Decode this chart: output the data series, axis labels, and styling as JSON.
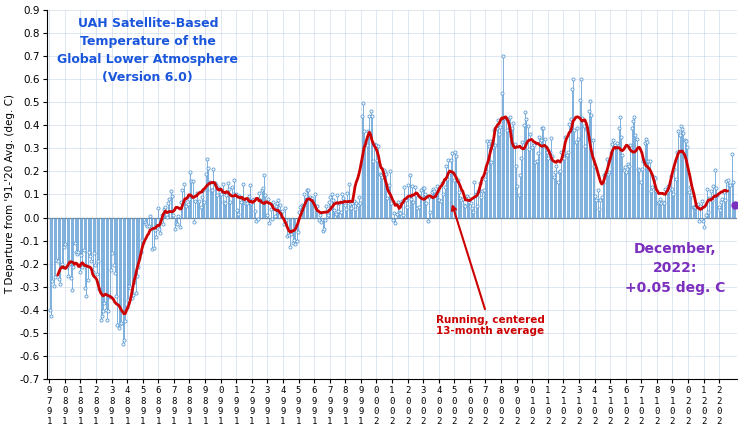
{
  "title": "UAH Satellite-Based\nTemperature of the\nGlobal Lower Atmosphere\n(Version 6.0)",
  "ylabel": "T Departure from '91-'20 Avg. (deg. C)",
  "annotation_text": "Running, centered\n13-month average",
  "dec2022_label": "December,\n2022:\n+0.05 deg. C",
  "title_color": "#1a56db",
  "annotation_color": "#cc0000",
  "dec2022_color": "#7b2fbe",
  "monthly_color": "#5b9bd5",
  "running_avg_color": "#cc0000",
  "zero_line_color": "#808080",
  "ylim": [
    -0.7,
    0.9
  ],
  "yticks": [
    -0.7,
    -0.6,
    -0.5,
    -0.4,
    -0.3,
    -0.2,
    -0.1,
    0.0,
    0.1,
    0.2,
    0.3,
    0.4,
    0.5,
    0.6,
    0.7,
    0.8,
    0.9
  ],
  "monthly_data": [
    -0.401,
    -0.424,
    -0.274,
    -0.296,
    -0.258,
    -0.182,
    -0.19,
    -0.267,
    -0.289,
    -0.201,
    -0.216,
    -0.127,
    -0.114,
    -0.215,
    -0.254,
    -0.199,
    -0.261,
    -0.315,
    -0.213,
    -0.111,
    -0.15,
    -0.159,
    -0.148,
    -0.234,
    -0.161,
    -0.212,
    -0.139,
    -0.304,
    -0.338,
    -0.272,
    -0.151,
    -0.166,
    -0.188,
    -0.234,
    -0.154,
    -0.204,
    -0.243,
    -0.189,
    -0.308,
    -0.443,
    -0.424,
    -0.404,
    -0.37,
    -0.399,
    -0.443,
    -0.405,
    -0.344,
    -0.228,
    -0.153,
    -0.204,
    -0.238,
    -0.341,
    -0.465,
    -0.476,
    -0.459,
    -0.456,
    -0.546,
    -0.529,
    -0.448,
    -0.388,
    -0.356,
    -0.296,
    -0.303,
    -0.348,
    -0.334,
    -0.28,
    -0.328,
    -0.254,
    -0.216,
    -0.173,
    -0.149,
    -0.098,
    -0.106,
    -0.021,
    -0.029,
    -0.036,
    -0.035,
    0.008,
    -0.044,
    -0.136,
    -0.133,
    -0.053,
    -0.083,
    0.042,
    -0.048,
    -0.066,
    0.013,
    -0.027,
    0.036,
    0.047,
    0.003,
    0.065,
    0.082,
    0.115,
    0.093,
    0.012,
    -0.049,
    -0.023,
    -0.027,
    0.007,
    -0.043,
    0.069,
    0.121,
    0.143,
    0.077,
    0.052,
    0.06,
    0.082,
    0.197,
    0.158,
    0.16,
    -0.021,
    0.073,
    0.107,
    0.066,
    0.07,
    0.044,
    0.091,
    0.117,
    0.069,
    0.19,
    0.254,
    0.215,
    0.155,
    0.118,
    0.119,
    0.208,
    0.151,
    0.139,
    0.098,
    0.129,
    0.109,
    0.102,
    0.146,
    0.069,
    0.065,
    0.096,
    0.149,
    0.124,
    0.068,
    0.132,
    0.101,
    0.164,
    0.104,
    0.031,
    0.015,
    0.095,
    0.066,
    0.083,
    0.145,
    0.064,
    0.074,
    0.063,
    0.095,
    0.14,
    0.062,
    0.076,
    0.081,
    0.028,
    -0.014,
    -0.007,
    0.107,
    0.074,
    0.12,
    0.128,
    0.183,
    0.098,
    0.009,
    0.079,
    -0.025,
    0.039,
    -0.007,
    0.069,
    0.008,
    0.051,
    0.064,
    0.076,
    0.054,
    0.016,
    0.027,
    -0.026,
    0.043,
    -0.012,
    -0.08,
    -0.075,
    -0.126,
    -0.072,
    -0.111,
    -0.097,
    -0.114,
    -0.103,
    -0.062,
    0.026,
    0.044,
    0.053,
    0.05,
    0.1,
    0.082,
    0.118,
    0.12,
    0.089,
    0.08,
    0.085,
    0.071,
    0.101,
    0.052,
    0.049,
    -0.01,
    0.012,
    -0.019,
    -0.06,
    -0.05,
    -0.01,
    0.052,
    0.012,
    0.067,
    0.089,
    0.103,
    0.076,
    0.032,
    0.015,
    0.099,
    0.027,
    0.065,
    0.023,
    0.102,
    0.084,
    0.054,
    0.039,
    0.108,
    0.145,
    0.057,
    0.043,
    0.064,
    0.073,
    0.039,
    0.062,
    0.053,
    0.088,
    0.064,
    0.44,
    0.497,
    0.376,
    0.328,
    0.316,
    0.374,
    0.441,
    0.461,
    0.441,
    0.245,
    0.32,
    0.313,
    0.247,
    0.309,
    0.19,
    0.182,
    0.177,
    0.207,
    0.196,
    0.19,
    0.086,
    0.139,
    0.201,
    0.063,
    -0.011,
    0.019,
    -0.023,
    0.015,
    0.069,
    0.022,
    0.021,
    0.073,
    0.011,
    0.131,
    0.074,
    0.047,
    0.14,
    0.184,
    0.081,
    0.137,
    0.067,
    0.13,
    0.096,
    0.043,
    0.045,
    0.094,
    0.118,
    0.127,
    0.128,
    0.1,
    0.065,
    -0.013,
    0.088,
    0.023,
    0.112,
    0.125,
    0.115,
    0.098,
    0.135,
    0.116,
    0.074,
    0.07,
    0.149,
    0.1,
    0.131,
    0.225,
    0.167,
    0.247,
    0.199,
    0.248,
    0.278,
    0.161,
    0.283,
    0.268,
    0.162,
    0.109,
    0.084,
    0.074,
    0.082,
    0.055,
    0.05,
    0.094,
    0.084,
    0.068,
    0.065,
    0.042,
    0.026,
    0.154,
    0.103,
    0.052,
    0.115,
    0.15,
    0.089,
    0.113,
    0.121,
    0.165,
    0.2,
    0.332,
    0.308,
    0.33,
    0.242,
    0.305,
    0.378,
    0.316,
    0.388,
    0.421,
    0.363,
    0.393,
    0.538,
    0.7,
    0.431,
    0.43,
    0.38,
    0.427,
    0.435,
    0.351,
    0.386,
    0.407,
    0.318,
    0.222,
    0.135,
    0.098,
    0.183,
    0.258,
    0.326,
    0.402,
    0.457,
    0.426,
    0.396,
    0.296,
    0.361,
    0.306,
    0.323,
    0.314,
    0.239,
    0.243,
    0.278,
    0.35,
    0.335,
    0.386,
    0.388,
    0.341,
    0.307,
    0.285,
    0.256,
    0.283,
    0.345,
    0.268,
    0.175,
    0.195,
    0.225,
    0.154,
    0.195,
    0.203,
    0.284,
    0.265,
    0.256,
    0.349,
    0.269,
    0.282,
    0.404,
    0.427,
    0.555,
    0.598,
    0.379,
    0.329,
    0.388,
    0.342,
    0.508,
    0.6,
    0.432,
    0.395,
    0.31,
    0.383,
    0.387,
    0.463,
    0.504,
    0.444,
    0.337,
    0.224,
    0.092,
    0.074,
    0.12,
    0.039,
    0.076,
    0.089,
    0.15,
    0.186,
    0.195,
    0.253,
    0.19,
    0.196,
    0.28,
    0.32,
    0.334,
    0.315,
    0.301,
    0.321,
    0.387,
    0.434,
    0.349,
    0.271,
    0.204,
    0.217,
    0.199,
    0.231,
    0.223,
    0.314,
    0.386,
    0.419,
    0.436,
    0.357,
    0.34,
    0.208,
    0.204,
    0.154,
    0.208,
    0.246,
    0.321,
    0.342,
    0.329,
    0.244,
    0.245,
    0.116,
    0.131,
    0.175,
    0.169,
    0.115,
    0.065,
    0.067,
    0.082,
    0.062,
    0.069,
    0.062,
    0.124,
    0.109,
    0.137,
    0.119,
    0.181,
    0.124,
    0.103,
    0.211,
    0.168,
    0.282,
    0.375,
    0.357,
    0.395,
    0.381,
    0.365,
    0.335,
    0.332,
    0.305,
    0.111,
    0.131,
    0.097,
    0.046,
    0.044,
    0.047,
    0.055,
    0.058,
    -0.013,
    0.049,
    0.072,
    -0.016,
    -0.043,
    0.01,
    0.123,
    0.023,
    0.083,
    0.115,
    0.075,
    0.138,
    0.204,
    0.128,
    0.099,
    0.046,
    0.033,
    0.066,
    0.082,
    0.109,
    0.077,
    0.157,
    0.161,
    0.139,
    0.142,
    0.274,
    0.152,
    0.049,
    0.053
  ],
  "start_year": 1979,
  "start_month": 1
}
